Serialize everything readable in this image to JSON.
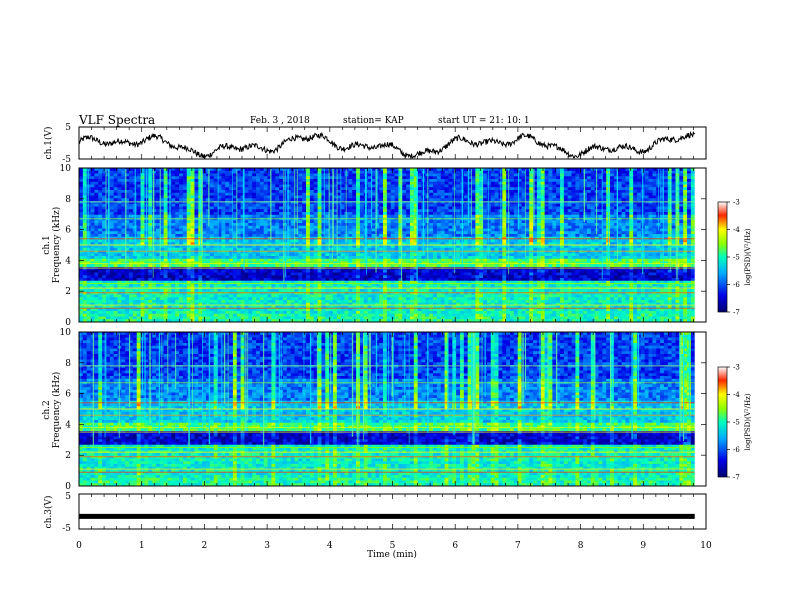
{
  "header": {
    "title": "VLF Spectra",
    "date": "Feb. 3 , 2018",
    "station": "station= KAP",
    "start": "start UT =  21: 10: 1"
  },
  "chart_data": [
    {
      "type": "line",
      "panel": "ch1-waveform",
      "ylabel": "ch.1(V)",
      "ylim": [
        -5,
        5
      ],
      "yticks": [
        "5",
        "-5"
      ],
      "xlim": [
        0,
        10
      ],
      "trace_hint": "noisy waveform fluctuating roughly between -4 and +3 V"
    },
    {
      "type": "heatmap",
      "panel": "ch1-spectrogram",
      "ylabel": "ch.1\nFrequency (kHz)",
      "ylabel_line1": "ch.1",
      "ylabel_line2": "Frequency (kHz)",
      "ylim": [
        0,
        10
      ],
      "yticks": [
        "0",
        "2",
        "4",
        "6",
        "8",
        "10"
      ],
      "xlim": [
        0,
        10
      ],
      "colorbar": {
        "label": "log(PSD)(V²/Hz)",
        "range": [
          -7,
          -3
        ],
        "ticks": [
          "-3",
          "-4",
          "-5",
          "-6",
          "-7"
        ],
        "colors": [
          "#00008b",
          "#0000ff",
          "#00bfff",
          "#00ff80",
          "#ffff00",
          "#ff0000",
          "#ffffff"
        ]
      }
    },
    {
      "type": "heatmap",
      "panel": "ch2-spectrogram",
      "ylabel": "ch.2\nFrequency (kHz)",
      "ylabel_line1": "ch.2",
      "ylabel_line2": "Frequency (kHz)",
      "ylim": [
        0,
        10
      ],
      "yticks": [
        "0",
        "2",
        "4",
        "6",
        "8",
        "10"
      ],
      "xlim": [
        0,
        10
      ],
      "colorbar": {
        "label": "log(PSD)(V²/Hz)",
        "range": [
          -7,
          -3
        ],
        "ticks": [
          "-3",
          "-4",
          "-5",
          "-6",
          "-7"
        ],
        "colors": [
          "#00008b",
          "#0000ff",
          "#00bfff",
          "#00ff80",
          "#ffff00",
          "#ff0000",
          "#ffffff"
        ]
      }
    },
    {
      "type": "line",
      "panel": "ch3-waveform",
      "ylabel": "ch.3(V)",
      "ylim": [
        -5,
        5
      ],
      "yticks": [
        "5",
        "-5"
      ],
      "xlim": [
        0,
        10
      ],
      "series": [
        {
          "values": [
            -1.4,
            -1.4
          ]
        }
      ],
      "trace_hint": "flat thick line at about -1.4 V"
    }
  ],
  "xaxis": {
    "label": "Time (min)",
    "ticks": [
      "0",
      "1",
      "2",
      "3",
      "4",
      "5",
      "6",
      "7",
      "8",
      "9",
      "10"
    ],
    "range": [
      0,
      10
    ],
    "data_end": 9.82
  }
}
